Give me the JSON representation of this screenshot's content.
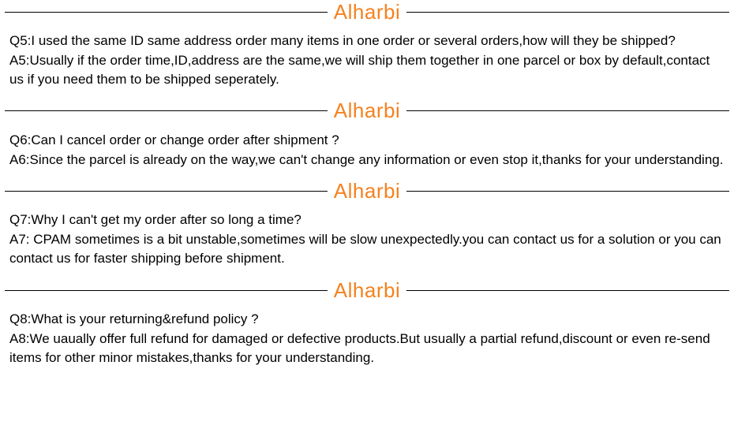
{
  "brand": "Alharbi",
  "colors": {
    "brand": "#f58220",
    "text": "#000000",
    "rule": "#000000",
    "bg": "#ffffff"
  },
  "typography": {
    "brand_fontsize": 26,
    "body_fontsize": 17,
    "line_height": 1.45
  },
  "faq": [
    {
      "q": "Q5:I used the same ID same address order many items in one order or several orders,how will they be shipped?",
      "a": "A5:Usually if the order time,ID,address are the same,we will ship them together in one parcel or box by default,contact us if you need them to be shipped seperately."
    },
    {
      "q": "Q6:Can I cancel order or change order after shipment ?",
      "a": "A6:Since the parcel is already on the way,we can't change any information or even stop it,thanks for your understanding."
    },
    {
      "q": "Q7:Why I can't get my order after so long a time?",
      "a": "A7: CPAM sometimes is a bit unstable,sometimes will be slow unexpectedly.you can contact us for a solution or you can contact us for faster shipping before shipment."
    },
    {
      "q": "Q8:What is your returning&refund policy ?",
      "a": "A8:We uaually offer full refund for damaged or defective products.But usually a partial refund,discount or even re-send items for other minor mistakes,thanks for your understanding."
    }
  ]
}
